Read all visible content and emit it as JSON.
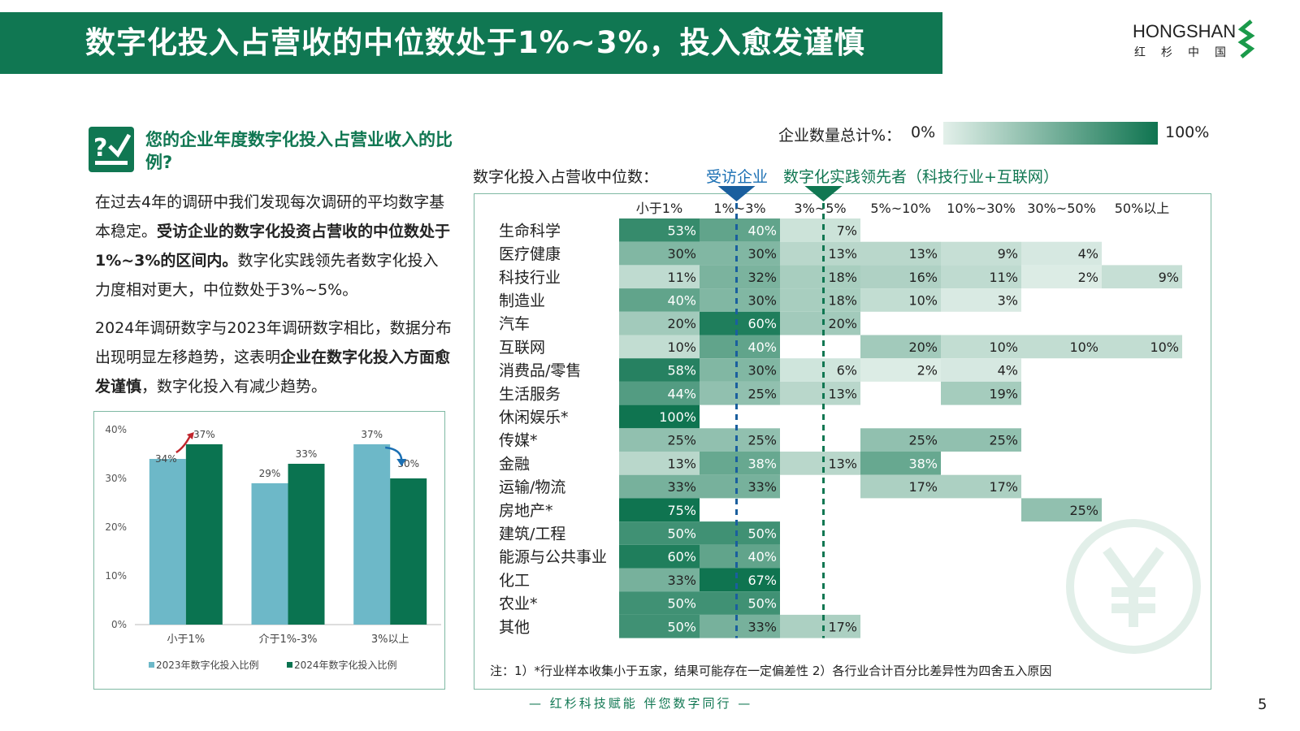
{
  "header": {
    "title": "数字化投入占营收的中位数处于1%~3%，投入愈发谨慎",
    "logo_en": "HONGSHAN",
    "logo_cn": "红杉中国"
  },
  "left": {
    "question": "您的企业年度数字化投入占营业收入的比例?",
    "para1": [
      {
        "t": "在过去4年的调研中我们发现每次调研的平均数字基本稳定。",
        "b": false
      },
      {
        "t": "受访企业的数字化投资占营收的中位数处于1%~3%的区间内。",
        "b": true
      },
      {
        "t": "数字化实践领先者数字化投入力度相对更大，中位数处于3%~5%。",
        "b": false
      }
    ],
    "para2": [
      {
        "t": "2024年调研数字与2023年调研数字相比，数据分布出现明显左移趋势，这表明",
        "b": false
      },
      {
        "t": "企业在数字化投入方面愈发谨慎",
        "b": true
      },
      {
        "t": "，数字化投入有减少趋势。",
        "b": false
      }
    ]
  },
  "bar_chart": {
    "type": "bar",
    "categories": [
      "小于1%",
      "介于1%-3%",
      "3%以上"
    ],
    "series": [
      {
        "name": "2023年数字化投入比例",
        "values": [
          34,
          29,
          37
        ],
        "labels": [
          "34%",
          "29%",
          "37%"
        ]
      },
      {
        "name": "2024年数字化投入比例",
        "values": [
          37,
          33,
          30
        ],
        "labels": [
          "37%",
          "33%",
          "30%"
        ]
      }
    ],
    "ylim": [
      0,
      40
    ],
    "yticks": [
      0,
      10,
      20,
      30,
      40
    ],
    "ytick_labels": [
      "0%",
      "10%",
      "20%",
      "30%",
      "40%"
    ],
    "colors": {
      "s2023": "#6db8c8",
      "s2024": "#0a7350",
      "arrow_up": "#c0262d",
      "arrow_down": "#1a6fb3"
    }
  },
  "heat_legend": {
    "label": "企业数量总计%：",
    "min": "0%",
    "max": "100%"
  },
  "median": {
    "label": "数字化投入占营收中位数：",
    "surveyed": "受访企业",
    "leaders": "数字化实践领先者（科技行业+互联网）",
    "surveyed_color": "#1a6fb3",
    "leaders_color": "#107752"
  },
  "chart_data": {
    "type": "heatmap",
    "columns": [
      "小于1%",
      "1%~3%",
      "3%~5%",
      "5%~10%",
      "10%~30%",
      "30%~50%",
      "50%以上"
    ],
    "rows": [
      {
        "name": "生命科学",
        "values": [
          53,
          40,
          7,
          null,
          null,
          null,
          null
        ]
      },
      {
        "name": "医疗健康",
        "values": [
          30,
          30,
          13,
          13,
          9,
          4,
          null
        ]
      },
      {
        "name": "科技行业",
        "values": [
          11,
          32,
          18,
          16,
          11,
          2,
          9
        ]
      },
      {
        "name": "制造业",
        "values": [
          40,
          30,
          18,
          10,
          3,
          null,
          null
        ]
      },
      {
        "name": "汽车",
        "values": [
          20,
          60,
          20,
          null,
          null,
          null,
          null
        ]
      },
      {
        "name": "互联网",
        "values": [
          10,
          40,
          null,
          20,
          10,
          10,
          10
        ]
      },
      {
        "name": "消费品/零售",
        "values": [
          58,
          30,
          6,
          2,
          4,
          null,
          null
        ]
      },
      {
        "name": "生活服务",
        "values": [
          44,
          25,
          13,
          null,
          19,
          null,
          null
        ]
      },
      {
        "name": "休闲娱乐*",
        "values": [
          100,
          null,
          null,
          null,
          null,
          null,
          null
        ]
      },
      {
        "name": "传媒*",
        "values": [
          25,
          25,
          null,
          25,
          25,
          null,
          null
        ]
      },
      {
        "name": "金融",
        "values": [
          13,
          38,
          13,
          38,
          null,
          null,
          null
        ]
      },
      {
        "name": "运输/物流",
        "values": [
          33,
          33,
          null,
          17,
          17,
          null,
          null
        ]
      },
      {
        "name": "房地产*",
        "values": [
          75,
          null,
          null,
          null,
          null,
          25,
          null
        ]
      },
      {
        "name": "建筑/工程",
        "values": [
          50,
          50,
          null,
          null,
          null,
          null,
          null
        ]
      },
      {
        "name": "能源与公共事业",
        "values": [
          60,
          40,
          null,
          null,
          null,
          null,
          null
        ]
      },
      {
        "name": "化工",
        "values": [
          33,
          67,
          null,
          null,
          null,
          null,
          null
        ]
      },
      {
        "name": "农业*",
        "values": [
          50,
          50,
          null,
          null,
          null,
          null,
          null
        ]
      },
      {
        "name": "其他",
        "values": [
          50,
          33,
          17,
          null,
          null,
          null,
          null
        ]
      }
    ],
    "value_suffix": "%",
    "color_range": [
      "#e3f0ea",
      "#0f7450"
    ]
  },
  "footer": {
    "note": "注：1）*行业样本收集小于五家，结果可能存在一定偏差性 2）各行业合计百分比差异性为四舍五入原因",
    "slogan": "— 红杉科技赋能    伴您数字同行 —",
    "page": "5"
  }
}
